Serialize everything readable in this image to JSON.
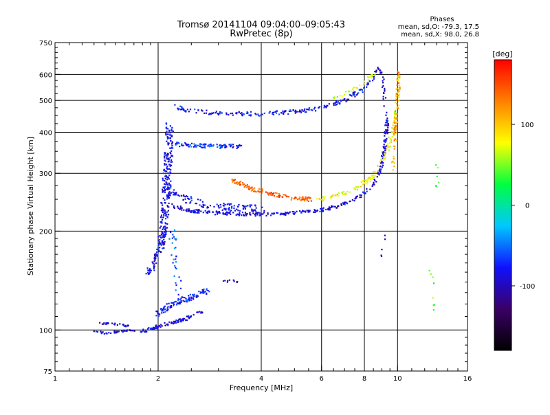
{
  "chart_data": {
    "type": "scatter",
    "title": "Tromsø 20141104 09:04:00–09:05:43",
    "subtitle": "RwPretec (8p)",
    "xlabel": "Frequency [MHz]",
    "ylabel": "Stationary phase Virtual Height [km]",
    "x_scale": "log",
    "y_scale": "log",
    "xlim": [
      1,
      16
    ],
    "ylim": [
      75,
      750
    ],
    "x_ticks": [
      1,
      2,
      4,
      6,
      8,
      10,
      16
    ],
    "x_tick_labels": [
      "1",
      "2",
      "4",
      "6",
      "8",
      "10",
      "16"
    ],
    "y_ticks": [
      75,
      100,
      200,
      300,
      400,
      500,
      600,
      750
    ],
    "y_tick_labels": [
      "75",
      "100",
      "200",
      "300",
      "400",
      "500",
      "600",
      "750"
    ],
    "grid": true,
    "stats": {
      "heading": "Phases",
      "line_o": "mean, sd,O: -79.3, 17.5",
      "line_x": "mean, sd,X:  98.0, 26.8"
    },
    "colorbar": {
      "label": "[deg]",
      "range": [
        -180,
        180
      ],
      "ticks": [
        100,
        0,
        -100
      ],
      "tick_labels": [
        "100",
        "0",
        "-100"
      ],
      "colors": [
        "#000000",
        "#3a0066",
        "#1010ff",
        "#00c8ff",
        "#00ff40",
        "#ffff00",
        "#ff8000",
        "#ff0000"
      ]
    },
    "series": [
      {
        "trace": [
          [
            1.75,
            98
          ],
          [
            1.9,
            101
          ],
          [
            2.1,
            104
          ],
          [
            2.4,
            108
          ],
          [
            2.7,
            114
          ]
        ],
        "phase": -90,
        "spread": 2.5,
        "count": 90
      },
      {
        "trace": [
          [
            1.35,
            105
          ],
          [
            1.5,
            104
          ],
          [
            1.65,
            103
          ]
        ],
        "phase": -95,
        "spread": 1.5,
        "count": 25
      },
      {
        "trace": [
          [
            1.3,
            99
          ],
          [
            1.4,
            98
          ],
          [
            1.55,
            99
          ],
          [
            1.7,
            100
          ]
        ],
        "phase": -90,
        "spread": 1.5,
        "count": 40
      },
      {
        "trace": [
          [
            2.0,
            112
          ],
          [
            2.2,
            120
          ],
          [
            2.5,
            126
          ],
          [
            2.8,
            132
          ]
        ],
        "phase": -75,
        "spread": 4,
        "count": 110
      },
      {
        "trace": [
          [
            1.85,
            145
          ],
          [
            1.95,
            160
          ],
          [
            2.02,
            175
          ],
          [
            2.06,
            190
          ]
        ],
        "phase": -85,
        "spread": 4,
        "count": 70
      },
      {
        "trace": [
          [
            2.05,
            180
          ],
          [
            2.08,
            215
          ],
          [
            2.1,
            245
          ],
          [
            2.12,
            285
          ],
          [
            2.14,
            330
          ],
          [
            2.15,
            375
          ],
          [
            2.16,
            420
          ]
        ],
        "phase": -85,
        "spread": 6,
        "count": 260
      },
      {
        "trace": [
          [
            2.2,
            240
          ],
          [
            2.4,
            232
          ],
          [
            2.8,
            228
          ],
          [
            3.3,
            226
          ],
          [
            4.0,
            225
          ],
          [
            5.0,
            227
          ],
          [
            6.0,
            232
          ],
          [
            7.0,
            242
          ],
          [
            8.0,
            260
          ],
          [
            8.6,
            285
          ],
          [
            9.0,
            320
          ],
          [
            9.2,
            370
          ],
          [
            9.3,
            420
          ],
          [
            9.35,
            460
          ]
        ],
        "phase": -90,
        "spread": 2.5,
        "count": 340
      },
      {
        "trace": [
          [
            2.15,
            270
          ],
          [
            2.3,
            255
          ],
          [
            2.6,
            244
          ],
          [
            3.0,
            238
          ],
          [
            3.5,
            235
          ],
          [
            4.0,
            234
          ]
        ],
        "phase": -80,
        "spread": 5,
        "count": 120
      },
      {
        "trace": [
          [
            2.25,
            370
          ],
          [
            2.4,
            366
          ],
          [
            2.7,
            364
          ],
          [
            3.0,
            363
          ],
          [
            3.5,
            362
          ]
        ],
        "phase": -70,
        "spread": 3,
        "count": 90
      },
      {
        "trace": [
          [
            2.25,
            480
          ],
          [
            2.5,
            465
          ],
          [
            3.0,
            456
          ],
          [
            4.0,
            455
          ],
          [
            5.0,
            462
          ],
          [
            6.0,
            475
          ],
          [
            7.0,
            500
          ],
          [
            7.8,
            535
          ],
          [
            8.3,
            570
          ],
          [
            8.7,
            610
          ]
        ],
        "phase": -80,
        "spread": 3,
        "count": 200
      },
      {
        "trace": [
          [
            2.2,
            200
          ],
          [
            2.25,
            160
          ],
          [
            2.3,
            130
          ]
        ],
        "phase": -60,
        "spread": 5,
        "count": 30
      },
      {
        "trace": [
          [
            3.3,
            285
          ],
          [
            3.8,
            268
          ],
          [
            4.4,
            258
          ],
          [
            5.0,
            252
          ],
          [
            5.6,
            250
          ]
        ],
        "phase": 140,
        "spread": 3,
        "count": 130
      },
      {
        "trace": [
          [
            5.8,
            248
          ],
          [
            6.5,
            255
          ],
          [
            7.5,
            268
          ],
          [
            8.5,
            295
          ],
          [
            9.2,
            340
          ],
          [
            9.6,
            390
          ],
          [
            9.9,
            440
          ],
          [
            10.0,
            520
          ],
          [
            10.1,
            600
          ]
        ],
        "phase": 80,
        "spread": 3,
        "count": 150
      },
      {
        "trace": [
          [
            6.5,
            510
          ],
          [
            7.2,
            530
          ],
          [
            8.0,
            565
          ],
          [
            8.6,
            610
          ]
        ],
        "phase": 70,
        "spread": 2,
        "count": 30
      },
      {
        "trace": [
          [
            8.6,
            610
          ],
          [
            8.8,
            630
          ],
          [
            9.0,
            600
          ],
          [
            9.1,
            540
          ],
          [
            9.2,
            480
          ]
        ],
        "phase": -95,
        "spread": 2,
        "count": 30
      },
      {
        "trace": [
          [
            9.6,
            300
          ],
          [
            9.8,
            360
          ],
          [
            9.9,
            430
          ],
          [
            10.0,
            500
          ],
          [
            10.05,
            560
          ],
          [
            10.1,
            620
          ]
        ],
        "phase": 120,
        "spread": 2.5,
        "count": 70
      },
      {
        "trace": [
          [
            12.6,
            150
          ],
          [
            12.7,
            130
          ],
          [
            12.8,
            115
          ]
        ],
        "phase": 40,
        "spread": 4,
        "count": 8
      },
      {
        "trace": [
          [
            12.9,
            330
          ],
          [
            13.2,
            265
          ],
          [
            13.4,
            290
          ]
        ],
        "phase": 40,
        "spread": 4,
        "count": 6
      },
      {
        "trace": [
          [
            3.1,
            140
          ],
          [
            3.3,
            142
          ],
          [
            3.5,
            138
          ]
        ],
        "phase": -100,
        "spread": 1.5,
        "count": 10
      },
      {
        "trace": [
          [
            9.2,
            205
          ],
          [
            9.0,
            175
          ],
          [
            9.1,
            160
          ]
        ],
        "phase": -100,
        "spread": 2,
        "count": 5
      }
    ]
  }
}
